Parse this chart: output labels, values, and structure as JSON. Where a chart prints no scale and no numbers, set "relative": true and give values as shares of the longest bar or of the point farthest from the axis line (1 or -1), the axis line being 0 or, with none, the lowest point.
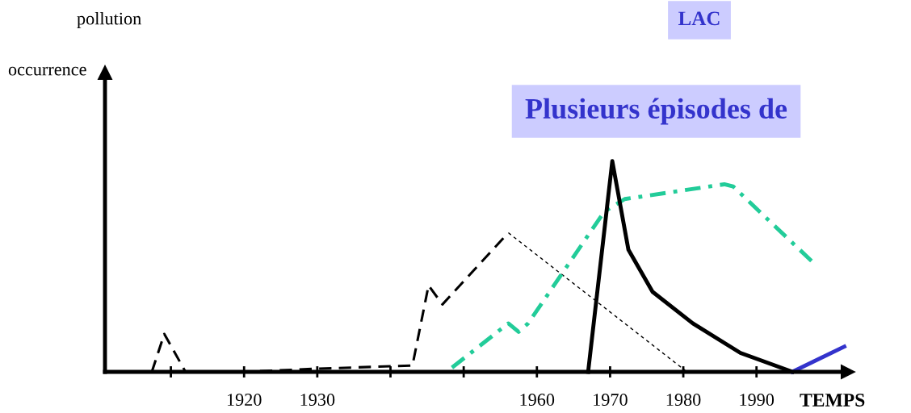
{
  "chart_data": {
    "type": "line",
    "title": "LAC",
    "ylabel": "pollution\n\noccurrence",
    "xlabel": "TEMPS",
    "annotations": [
      "Plusieurs épisodes de"
    ],
    "relative": true,
    "tick_labels": "x",
    "grid": false,
    "legend": false,
    "marker": "none",
    "xlim": [
      1901,
      2002.5
    ],
    "xticks": [
      {
        "value": 1910,
        "label": null
      },
      1920,
      1930,
      {
        "value": 1940,
        "label": null
      },
      {
        "value": 1950,
        "label": null
      },
      1960,
      1970,
      1980,
      1990
    ],
    "series": [
      {
        "color": "#000000",
        "line_style": "dashed",
        "x": [
          1907.4,
          1909.1,
          1912,
          1920,
          1930,
          1943,
          1945.2,
          1947.1,
          1956.1
        ],
        "values": [
          0,
          0.18,
          0,
          0,
          0.015,
          0.03,
          0.41,
          0.32,
          0.66
        ]
      },
      {
        "color": "#000000",
        "line_style": "dotted",
        "x": [
          1956.1,
          1980.5
        ],
        "values": [
          0.66,
          0
        ]
      },
      {
        "color": "#22cc99",
        "line_style": "dashdot",
        "x": [
          1948.4,
          1956.1,
          1957.5,
          1958.8,
          1969.2,
          1972,
          1985.6,
          1986.8,
          1997.7
        ],
        "values": [
          0.02,
          0.23,
          0.19,
          0.23,
          0.76,
          0.82,
          0.89,
          0.88,
          0.52
        ]
      },
      {
        "color": "#000000",
        "line_style": "solid",
        "x": [
          1967,
          1970.3,
          1972.5,
          1975.8,
          1981.3,
          1987.8,
          1994.9
        ],
        "values": [
          0,
          1.0,
          0.58,
          0.38,
          0.23,
          0.09,
          0
        ]
      },
      {
        "color": "#3333cc",
        "line_style": "solid",
        "x": [
          1994.9,
          2002
        ],
        "values": [
          0,
          0.12
        ]
      }
    ]
  }
}
